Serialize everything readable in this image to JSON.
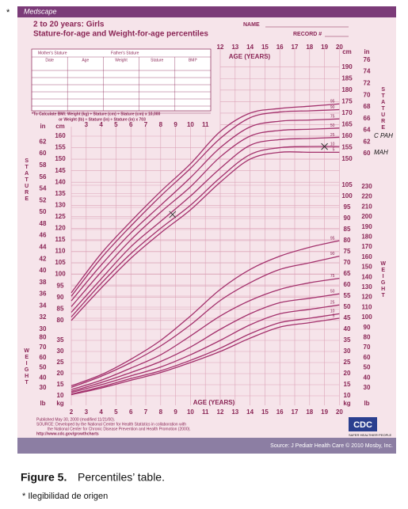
{
  "star": "*",
  "header": {
    "brand": "Medscape",
    "title": "2 to 20 years: Girls",
    "subtitle": "Stature-for-age and Weight-for-age percentiles",
    "name": "NAME",
    "record": "RECORD #"
  },
  "record_table": {
    "mother": "Mother's Stature",
    "father": "Father's Stature",
    "columns": [
      "Date",
      "Age",
      "Weight",
      "Stature",
      "BMI*"
    ],
    "note1": "*To Calculate BMI: Weight (kg) ÷ Stature (cm) ÷ Stature (cm) x 10,000",
    "note2": "or Weight (lb) ÷ Stature (in) ÷ Stature (in) x 703"
  },
  "units": {
    "in": "in",
    "cm": "cm",
    "lb": "lb",
    "kg": "kg"
  },
  "axis_labels": {
    "age": "AGE (YEARS)",
    "stature": "STATURE",
    "weight": "WEIGHT"
  },
  "age_ticks": [
    2,
    3,
    4,
    5,
    6,
    7,
    8,
    9,
    10,
    11,
    12,
    13,
    14,
    15,
    16,
    17,
    18,
    19,
    20
  ],
  "stature_cm_ticks": [
    80,
    85,
    90,
    95,
    100,
    105,
    110,
    115,
    120,
    125,
    130,
    135,
    140,
    145,
    150,
    155,
    160
  ],
  "stature_in_ticks": [
    30,
    32,
    34,
    36,
    38,
    40,
    42,
    44,
    46,
    48,
    50,
    52,
    54,
    56,
    58,
    60,
    62
  ],
  "stature_cm_right_ticks": [
    150,
    155,
    160,
    165,
    170,
    175,
    180,
    185,
    190
  ],
  "stature_in_right_ticks": [
    60,
    62,
    64,
    66,
    68,
    70,
    72,
    74,
    76
  ],
  "weight_kg_ticks": [
    10,
    15,
    20,
    25,
    30,
    35,
    40,
    45,
    50,
    55,
    60,
    65,
    70,
    75,
    80,
    85,
    90,
    95,
    100,
    105
  ],
  "weight_lb_ticks": [
    30,
    40,
    50,
    60,
    70,
    80,
    90,
    100,
    110,
    120,
    130,
    140,
    150,
    160,
    170,
    180,
    190,
    200,
    210,
    220,
    230
  ],
  "weight_kg_left_ticks": [
    10,
    15,
    20,
    25,
    30,
    35
  ],
  "weight_lb_left_ticks": [
    30,
    40,
    50,
    60,
    70,
    80
  ],
  "stature": {
    "x": [
      2,
      4,
      6,
      8,
      10,
      12,
      14,
      16,
      18,
      20
    ],
    "series": [
      {
        "name": "95",
        "values": [
          92,
          109,
          123,
          136,
          148,
          162,
          170,
          172,
          173,
          174
        ]
      },
      {
        "name": "90",
        "values": [
          90.5,
          107,
          121,
          134,
          146,
          159,
          168,
          170.5,
          171,
          171.5
        ]
      },
      {
        "name": "75",
        "values": [
          88.5,
          104,
          118,
          130,
          142,
          155,
          164,
          166.5,
          167,
          167.5
        ]
      },
      {
        "name": "50",
        "values": [
          86,
          101,
          115,
          127,
          138,
          151,
          160,
          162.5,
          163,
          163.5
        ]
      },
      {
        "name": "25",
        "values": [
          83.5,
          98,
          112,
          123,
          134,
          146,
          156,
          158.5,
          159,
          159.5
        ]
      },
      {
        "name": "10",
        "values": [
          81.5,
          96,
          109,
          120,
          130,
          142,
          152,
          155,
          155.5,
          155.5
        ]
      },
      {
        "name": "5",
        "values": [
          80,
          94,
          107,
          118,
          128,
          140,
          150,
          153,
          153,
          153
        ]
      }
    ]
  },
  "weight": {
    "x": [
      2,
      4,
      6,
      8,
      10,
      12,
      14,
      16,
      18,
      20
    ],
    "series": [
      {
        "name": "95",
        "values": [
          14.5,
          19.5,
          26.5,
          35,
          46,
          58,
          67,
          73,
          77,
          80
        ]
      },
      {
        "name": "90",
        "values": [
          13.8,
          18.8,
          25,
          32.5,
          42,
          53,
          61,
          67,
          70,
          73
        ]
      },
      {
        "name": "75",
        "values": [
          12.8,
          17,
          22.5,
          28.5,
          37,
          46,
          53,
          58,
          61,
          63
        ]
      },
      {
        "name": "50",
        "values": [
          12,
          16,
          20.5,
          25.5,
          32,
          40,
          47,
          52,
          54,
          56
        ]
      },
      {
        "name": "25",
        "values": [
          11.5,
          15,
          19,
          23,
          28.5,
          35,
          42,
          47,
          49,
          51
        ]
      },
      {
        "name": "10",
        "values": [
          10.8,
          14,
          17.8,
          21.3,
          26,
          31.5,
          38,
          43,
          45,
          47
        ]
      },
      {
        "name": "5",
        "values": [
          10.5,
          13.5,
          17,
          20.5,
          25,
          30,
          36,
          41,
          43,
          45
        ]
      }
    ]
  },
  "plotted_points": {
    "age": [
      8.8,
      19
    ],
    "stature": [
      126,
      155.5
    ]
  },
  "handwriting": [
    "C PAH",
    "MAH"
  ],
  "footer": {
    "published": "Published May 30, 2000 (modified 11/21/00).",
    "source": "SOURCE: Developed by the National Center for Health Statistics in collaboration with",
    "source2": "the National Center for Chronic Disease Prevention and Health Promotion (2000).",
    "url": "http://www.cdc.gov/growthcharts",
    "logo": "CDC",
    "motto": "SAFER·HEALTHIER·PEOPLE",
    "credit": "Source: J Pediatr Health Care © 2010 Mosby, Inc."
  },
  "caption": {
    "label": "Figure 5.",
    "text": " Percentiles’ table."
  },
  "note": "* Ilegibilidad de origen"
}
